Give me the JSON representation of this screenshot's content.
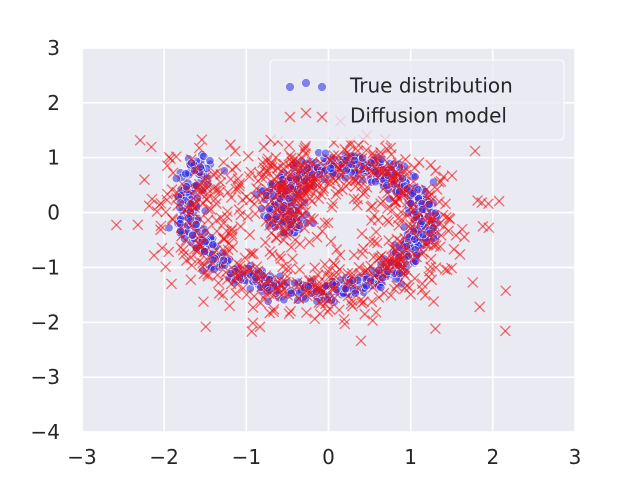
{
  "chart_data": {
    "type": "scatter",
    "title": "",
    "xlabel": "",
    "ylabel": "",
    "xlim": [
      -3,
      3
    ],
    "ylim": [
      -4,
      3
    ],
    "xticks": [
      -3,
      -2,
      -1,
      0,
      1,
      2,
      3
    ],
    "yticks": [
      -4,
      -3,
      -2,
      -1,
      0,
      1,
      2,
      3
    ],
    "xtick_labels": [
      "−3",
      "−2",
      "−1",
      "0",
      "1",
      "2",
      "3"
    ],
    "ytick_labels": [
      "−4",
      "−3",
      "−2",
      "−1",
      "0",
      "1",
      "2",
      "3"
    ],
    "grid": true,
    "legend_position": "top-right",
    "colors": {
      "plot_background": "#eaeaf2",
      "grid": "#ffffff",
      "true_marker": "#2a2ae8",
      "diffusion_marker": "#f01010"
    },
    "series": [
      {
        "name": "True distribution",
        "marker": "circle",
        "color": "#2a2ae8",
        "shape": "spiral",
        "spiral": {
          "theta_start": 2.7,
          "theta_end": 10.0,
          "scale": 0.18,
          "noise": 0.1,
          "points": 1000
        }
      },
      {
        "name": "Diffusion model",
        "marker": "x",
        "color": "#f01010",
        "shape": "noisy spiral",
        "spiral": {
          "theta_start": 2.7,
          "theta_end": 10.0,
          "scale": 0.18,
          "noise": 0.3,
          "points": 700
        },
        "outlier_count": 60
      }
    ]
  }
}
